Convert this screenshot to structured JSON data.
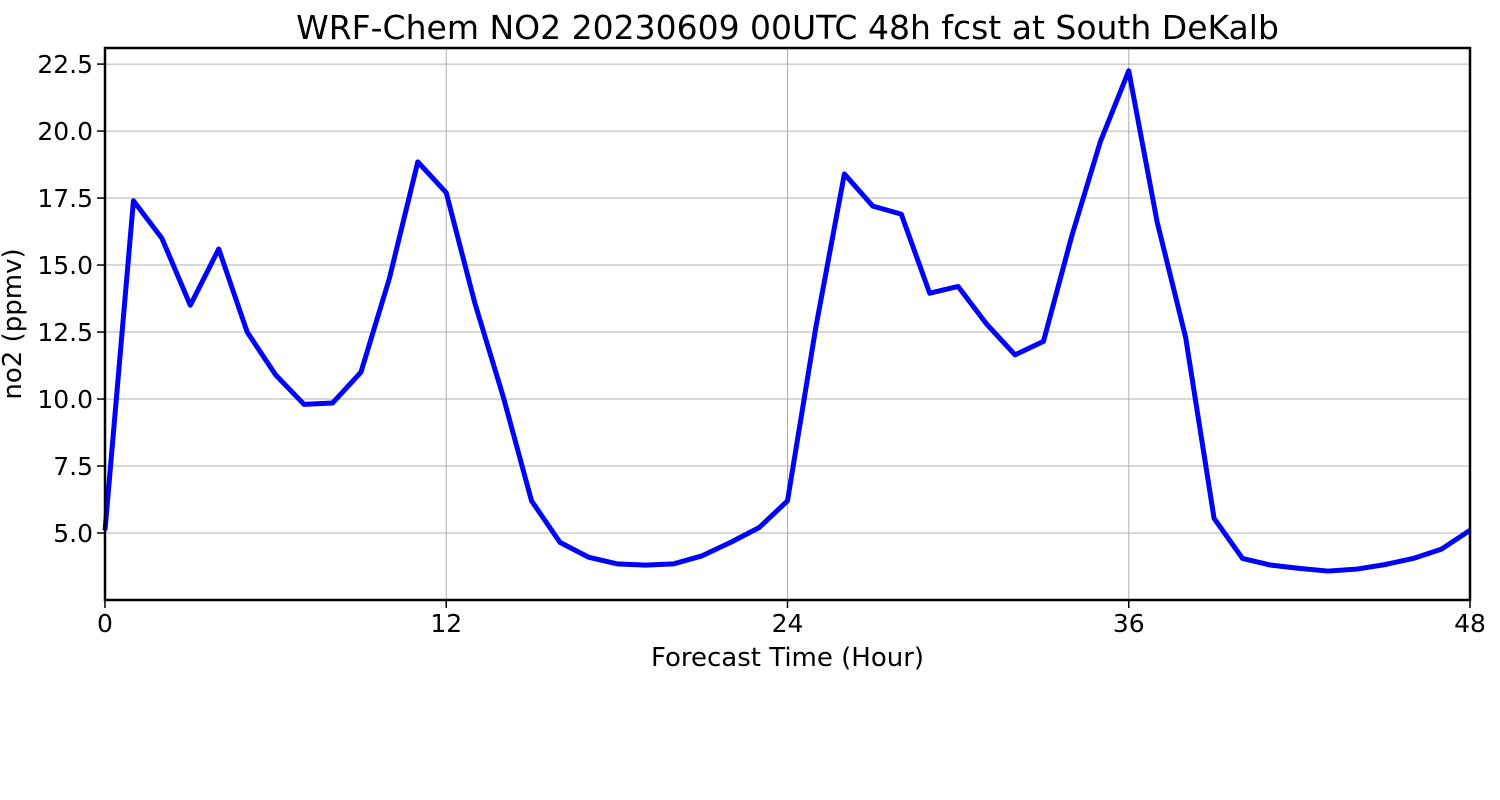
{
  "colors": {
    "line": "#0000ff",
    "grid": "#b0b0b0",
    "frame": "#000000",
    "background": "#ffffff"
  },
  "chart_data": {
    "type": "line",
    "title": "WRF-Chem NO2  20230609 00UTC 48h fcst at South DeKalb",
    "xlabel": "Forecast Time (Hour)",
    "ylabel": "no2  (ppmv)",
    "xlim": [
      0,
      48
    ],
    "ylim": [
      2.5,
      23.1
    ],
    "xticks": [
      0,
      12,
      24,
      36,
      48
    ],
    "xtick_labels": [
      "0",
      "12",
      "24",
      "36",
      "48"
    ],
    "yticks": [
      5.0,
      7.5,
      10.0,
      12.5,
      15.0,
      17.5,
      20.0,
      22.5
    ],
    "ytick_labels": [
      "5.0",
      "7.5",
      "10.0",
      "12.5",
      "15.0",
      "17.5",
      "20.0",
      "22.5"
    ],
    "grid": true,
    "series": [
      {
        "x": [
          0,
          1,
          2,
          3,
          4,
          5,
          6,
          7,
          8,
          9,
          10,
          11,
          12,
          13,
          14,
          15,
          16,
          17,
          18,
          19,
          20,
          21,
          22,
          23,
          24,
          25,
          26,
          27,
          28,
          29,
          30,
          31,
          32,
          33,
          34,
          35,
          36,
          37,
          38,
          39,
          40,
          41,
          42,
          43,
          44,
          45,
          46,
          47,
          48
        ],
        "values": [
          5.1,
          17.4,
          16.0,
          13.5,
          15.6,
          12.5,
          10.9,
          9.8,
          9.85,
          11.0,
          14.5,
          18.85,
          17.7,
          13.6,
          10.1,
          6.2,
          4.65,
          4.1,
          3.85,
          3.8,
          3.85,
          4.15,
          4.65,
          5.2,
          6.2,
          12.7,
          18.4,
          17.2,
          16.9,
          13.95,
          14.2,
          12.8,
          11.65,
          12.15,
          16.1,
          19.6,
          22.25,
          16.6,
          12.3,
          5.55,
          4.05,
          3.8,
          3.68,
          3.58,
          3.65,
          3.82,
          4.05,
          4.4,
          5.1
        ]
      }
    ]
  }
}
